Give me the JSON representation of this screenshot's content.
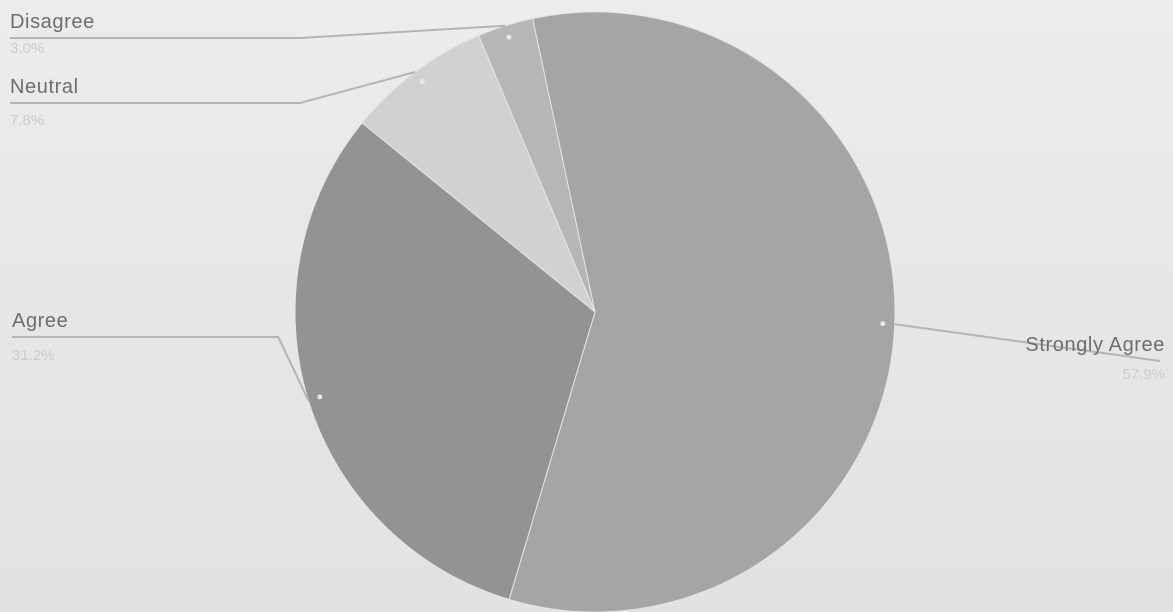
{
  "chart_data": {
    "type": "pie",
    "title": "",
    "legend": "none",
    "slices": [
      {
        "label": "Strongly Agree",
        "value": 57.9,
        "display": "57.9%",
        "color": "#a5a5a3"
      },
      {
        "label": "Agree",
        "value": 31.2,
        "display": "31.2%",
        "color": "#939391"
      },
      {
        "label": "Neutral",
        "value": 7.8,
        "display": "7.8%",
        "color": "#d1d1cf"
      },
      {
        "label": "Disagree",
        "value": 3.0,
        "display": "3.0%",
        "color": "#b6b6b4"
      }
    ]
  }
}
